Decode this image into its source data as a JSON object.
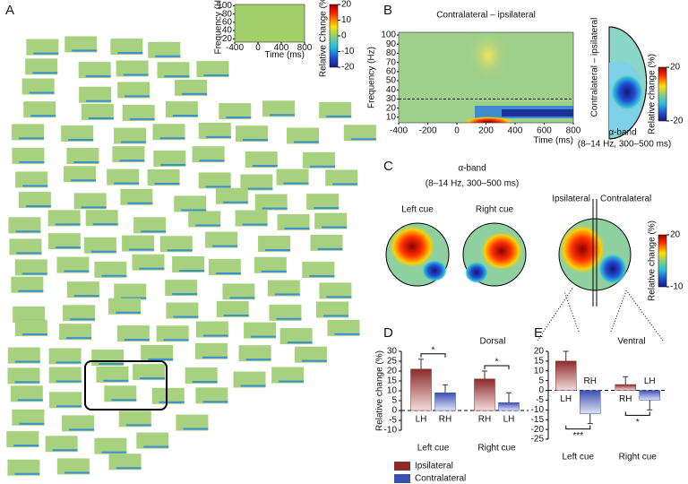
{
  "chart_data": [
    {
      "type": "heatmap",
      "panel": "A",
      "xlabel": "Time (ms)",
      "ylabel": "Frequency (Hz)",
      "xlim": [
        -400,
        800
      ],
      "xticks": [
        -400,
        0,
        400,
        800
      ],
      "ylim": [
        12,
        103
      ],
      "yticks": [
        20,
        40,
        60,
        80,
        100
      ],
      "colorbar_label": "Relative Change (%)",
      "clim": [
        -20,
        20
      ],
      "cticks": [
        20,
        10,
        0,
        -10,
        -20
      ]
    },
    {
      "type": "heatmap",
      "panel": "B",
      "title": "Contralateral – ipsilateral",
      "xlabel": "Time (ms)",
      "ylabel": "Frequency (Hz)",
      "xlim": [
        -400,
        800
      ],
      "xticks": [
        -400,
        -200,
        0,
        200,
        400,
        600,
        800
      ],
      "ylim": [
        4,
        103
      ],
      "yticks": [
        10,
        20,
        30,
        40,
        50,
        60,
        70,
        80,
        90,
        100
      ],
      "ref_line": 30
    },
    {
      "type": "topomap",
      "side_label": "Contralateral – ipsilateral",
      "label": "α-band",
      "sublabel": "(8–14 Hz, 300–500 ms)",
      "colorbar_label": "Relative change (%)",
      "clim": [
        -20,
        20
      ],
      "cticks": [
        20,
        -20
      ]
    },
    {
      "type": "topomap",
      "panel": "C",
      "title": "α-band",
      "subtitle": "(8–14 Hz, 300–500 ms)",
      "maps": [
        "Left cue",
        "Right cue"
      ],
      "split_labels": [
        "Ipsilateral",
        "Contralateral"
      ],
      "colorbar_label": "Relative change (%)",
      "clim": [
        -10,
        20
      ],
      "cticks": [
        20,
        -10
      ]
    },
    {
      "type": "bar",
      "panel": "D",
      "title": "Dorsal",
      "ylabel": "Relative change (%)",
      "categories": [
        "Left cue",
        "Right cue"
      ],
      "ylim": [
        -10,
        30
      ],
      "yticks": [
        -10,
        -5,
        0,
        5,
        10,
        15,
        20,
        25,
        30
      ],
      "series": [
        {
          "name": "Ipsilateral",
          "color": "#8c2a2a",
          "values": [
            21,
            16
          ],
          "errors": [
            5,
            4
          ],
          "labels": [
            "LH",
            "RH"
          ]
        },
        {
          "name": "Contralateral",
          "color": "#3c4fb2",
          "values": [
            9,
            4
          ],
          "errors": [
            4,
            5
          ],
          "labels": [
            "RH",
            "LH"
          ]
        }
      ],
      "annotations": [
        {
          "text": "*",
          "category": 0,
          "side": "top"
        },
        {
          "text": "*",
          "category": 1,
          "side": "top"
        }
      ]
    },
    {
      "type": "bar",
      "panel": "E",
      "title": "Ventral",
      "categories": [
        "Left cue",
        "Right cue"
      ],
      "ylim": [
        -25,
        20
      ],
      "yticks": [
        -25,
        -20,
        -15,
        -10,
        -5,
        0,
        5,
        10,
        15,
        20
      ],
      "series": [
        {
          "color": "#8c2a2a",
          "values": [
            15,
            3
          ],
          "errors": [
            5,
            4
          ],
          "labels": [
            "LH",
            "RH"
          ]
        },
        {
          "color": "#3c4fb2",
          "values": [
            -12,
            -5
          ],
          "errors": [
            5,
            5
          ],
          "labels": [
            "RH",
            "LH"
          ]
        }
      ],
      "annotations": [
        {
          "text": "***",
          "category": 0,
          "side": "bottom"
        },
        {
          "text": "*",
          "category": 1,
          "side": "bottom"
        }
      ]
    }
  ]
}
